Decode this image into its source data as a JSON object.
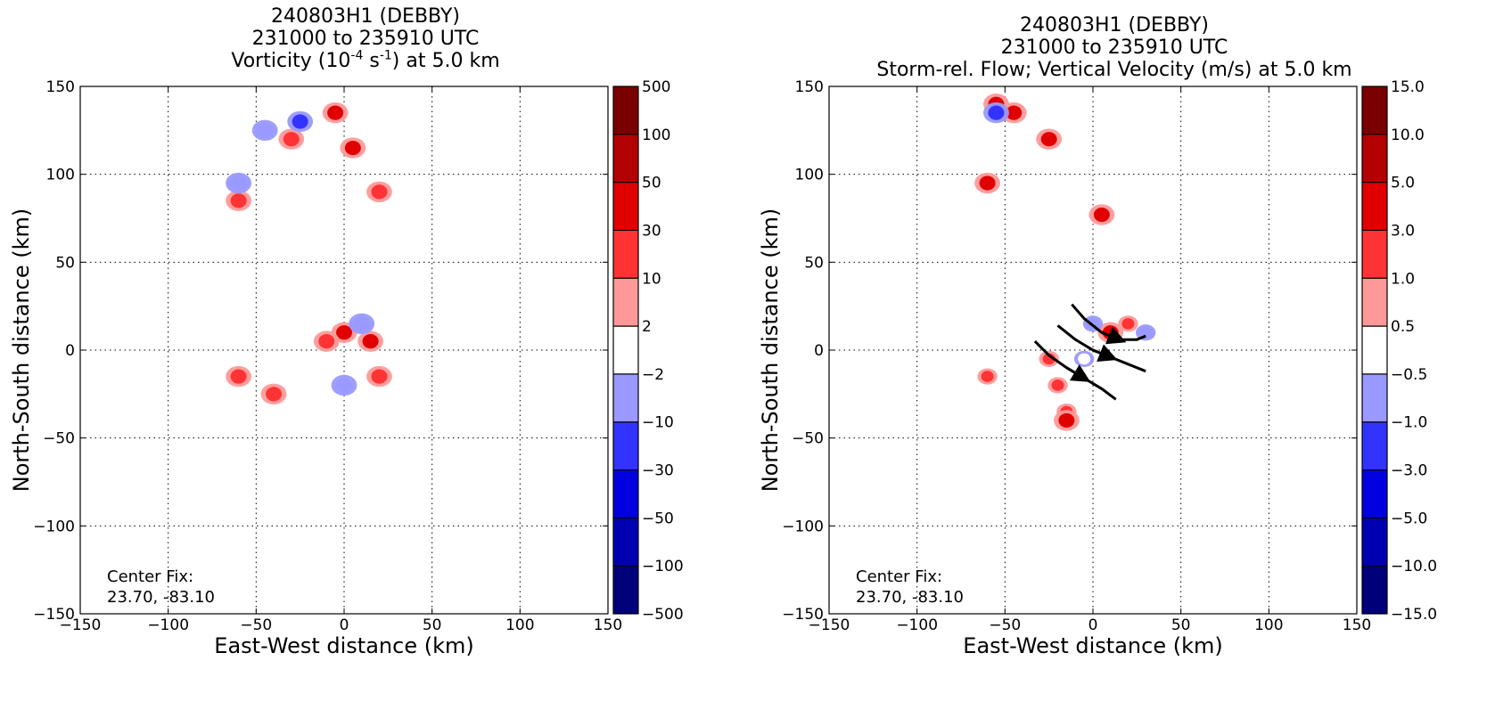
{
  "left": {
    "title_line1": "240803H1 (DEBBY)",
    "title_line2": "231000 to 235910 UTC",
    "title_line3_pre": "Vorticity (10",
    "title_line3_sup1": "-4",
    "title_line3_mid": " s",
    "title_line3_sup2": "-1",
    "title_line3_post": ") at 5.0 km",
    "xlabel": "East-West distance (km)",
    "ylabel": "North-South distance (km)",
    "center_fix_label": "Center Fix:",
    "center_fix_value": "23.70, -83.10"
  },
  "right": {
    "title_line1": "240803H1 (DEBBY)",
    "title_line2": "231000 to 235910 UTC",
    "title_line3": "Storm-rel. Flow; Vertical Velocity (m/s) at 5.0 km",
    "xlabel": "East-West distance (km)",
    "ylabel": "North-South distance (km)",
    "center_fix_label": "Center Fix:",
    "center_fix_value": "23.70, -83.10"
  },
  "chart_data": [
    {
      "type": "heatmap",
      "title": "240803H1 (DEBBY) 231000 to 235910 UTC Vorticity (10^-4 s^-1) at 5.0 km",
      "xlabel": "East-West distance (km)",
      "ylabel": "North-South distance (km)",
      "xlim": [
        -150,
        150
      ],
      "ylim": [
        -150,
        150
      ],
      "xticks": [
        "−150",
        "−100",
        "−50",
        "0",
        "50",
        "100",
        "150"
      ],
      "yticks": [
        "150",
        "100",
        "50",
        "0",
        "−50",
        "−100",
        "−150"
      ],
      "grid": true,
      "colorbar_ticks": [
        "500",
        "100",
        "50",
        "30",
        "10",
        "2",
        "−2",
        "−10",
        "−30",
        "−50",
        "−100",
        "−500"
      ],
      "colorbar_colors": [
        "#7a0000",
        "#b30000",
        "#e00000",
        "#ff3333",
        "#ff9999",
        "#ffffff",
        "#9999ff",
        "#3333ff",
        "#0000e0",
        "#0000b3",
        "#00007a"
      ],
      "features": [
        {
          "x": 0,
          "y": 10,
          "value": 30
        },
        {
          "x": 15,
          "y": 5,
          "value": 30
        },
        {
          "x": 20,
          "y": -15,
          "value": 10
        },
        {
          "x": -5,
          "y": 135,
          "value": 30
        },
        {
          "x": 5,
          "y": 115,
          "value": 30
        },
        {
          "x": -10,
          "y": 5,
          "value": 10
        },
        {
          "x": 20,
          "y": 90,
          "value": 10
        },
        {
          "x": -60,
          "y": 85,
          "value": 10
        },
        {
          "x": -30,
          "y": 120,
          "value": 10
        },
        {
          "x": 10,
          "y": 15,
          "value": -10
        },
        {
          "x": 0,
          "y": -20,
          "value": -10
        },
        {
          "x": -60,
          "y": 95,
          "value": -10
        },
        {
          "x": -45,
          "y": 125,
          "value": -10
        },
        {
          "x": -25,
          "y": 130,
          "value": -30
        },
        {
          "x": -60,
          "y": -15,
          "value": 10
        },
        {
          "x": -40,
          "y": -25,
          "value": 10
        }
      ]
    },
    {
      "type": "heatmap",
      "title": "240803H1 (DEBBY) 231000 to 235910 UTC Storm-rel. Flow; Vertical Velocity (m/s) at 5.0 km",
      "xlabel": "East-West distance (km)",
      "ylabel": "North-South distance (km)",
      "xlim": [
        -150,
        150
      ],
      "ylim": [
        -150,
        150
      ],
      "xticks": [
        "−150",
        "−100",
        "−50",
        "0",
        "50",
        "100",
        "150"
      ],
      "yticks": [
        "150",
        "100",
        "50",
        "0",
        "−50",
        "−100",
        "−150"
      ],
      "grid": true,
      "colorbar_ticks": [
        "15.0",
        "10.0",
        "5.0",
        "3.0",
        "1.0",
        "0.5",
        "−0.5",
        "−1.0",
        "−3.0",
        "−5.0",
        "−10.0",
        "−15.0"
      ],
      "colorbar_colors": [
        "#7a0000",
        "#b30000",
        "#e00000",
        "#ff3333",
        "#ff9999",
        "#ffffff",
        "#9999ff",
        "#3333ff",
        "#0000e0",
        "#0000b3",
        "#00007a"
      ],
      "features": [
        {
          "x": -55,
          "y": 140,
          "value": 3.0
        },
        {
          "x": -45,
          "y": 135,
          "value": 3.0
        },
        {
          "x": -25,
          "y": 120,
          "value": 3.0
        },
        {
          "x": -60,
          "y": 95,
          "value": 3.0
        },
        {
          "x": 5,
          "y": 77,
          "value": 3.0
        },
        {
          "x": 20,
          "y": 15,
          "value": 1.0
        },
        {
          "x": 10,
          "y": 10,
          "value": 3.0
        },
        {
          "x": -25,
          "y": -5,
          "value": 1.0
        },
        {
          "x": -20,
          "y": -20,
          "value": 1.0
        },
        {
          "x": -15,
          "y": -35,
          "value": 1.0
        },
        {
          "x": -60,
          "y": -15,
          "value": 1.0
        },
        {
          "x": -15,
          "y": -40,
          "value": 3.0
        },
        {
          "x": 0,
          "y": 15,
          "value": -1.0
        },
        {
          "x": 30,
          "y": 10,
          "value": -1.0
        },
        {
          "x": -55,
          "y": 135,
          "value": -3.0
        },
        {
          "x": -5,
          "y": -5,
          "value": -0.5
        }
      ],
      "streamlines": [
        [
          [
            -12,
            26
          ],
          [
            -5,
            18
          ],
          [
            5,
            10
          ],
          [
            15,
            6
          ],
          [
            25,
            6
          ],
          [
            30,
            8
          ]
        ],
        [
          [
            -20,
            14
          ],
          [
            -10,
            6
          ],
          [
            0,
            0
          ],
          [
            10,
            -4
          ],
          [
            20,
            -8
          ],
          [
            30,
            -12
          ]
        ],
        [
          [
            -33,
            5
          ],
          [
            -25,
            -3
          ],
          [
            -15,
            -10
          ],
          [
            -5,
            -16
          ],
          [
            5,
            -22
          ],
          [
            13,
            -28
          ]
        ]
      ]
    }
  ]
}
